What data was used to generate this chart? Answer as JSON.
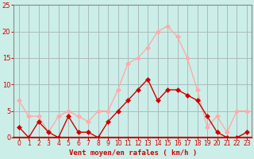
{
  "x": [
    0,
    1,
    2,
    3,
    4,
    5,
    6,
    7,
    8,
    9,
    10,
    11,
    12,
    13,
    14,
    15,
    16,
    17,
    18,
    19,
    20,
    21,
    22,
    23
  ],
  "rafales": [
    7,
    4,
    4,
    1,
    4,
    5,
    4,
    3,
    5,
    5,
    9,
    14,
    15,
    17,
    20,
    21,
    19,
    15,
    9,
    2,
    4,
    1,
    5,
    5
  ],
  "vent_moyen": [
    2,
    0,
    3,
    1,
    0,
    4,
    1,
    1,
    0,
    3,
    5,
    7,
    9,
    11,
    7,
    9,
    9,
    8,
    7,
    4,
    1,
    0,
    0,
    1
  ],
  "rafales_color": "#ffaaaa",
  "vent_color": "#cc0000",
  "background_color": "#cceee8",
  "grid_color": "#aabbbb",
  "xlabel": "Vent moyen/en rafales ( km/h )",
  "xlabel_color": "#cc0000",
  "tick_color": "#cc0000",
  "spine_color": "#888888",
  "ylim": [
    0,
    25
  ],
  "yticks": [
    0,
    5,
    10,
    15,
    20,
    25
  ],
  "markersize": 3,
  "linewidth": 1
}
